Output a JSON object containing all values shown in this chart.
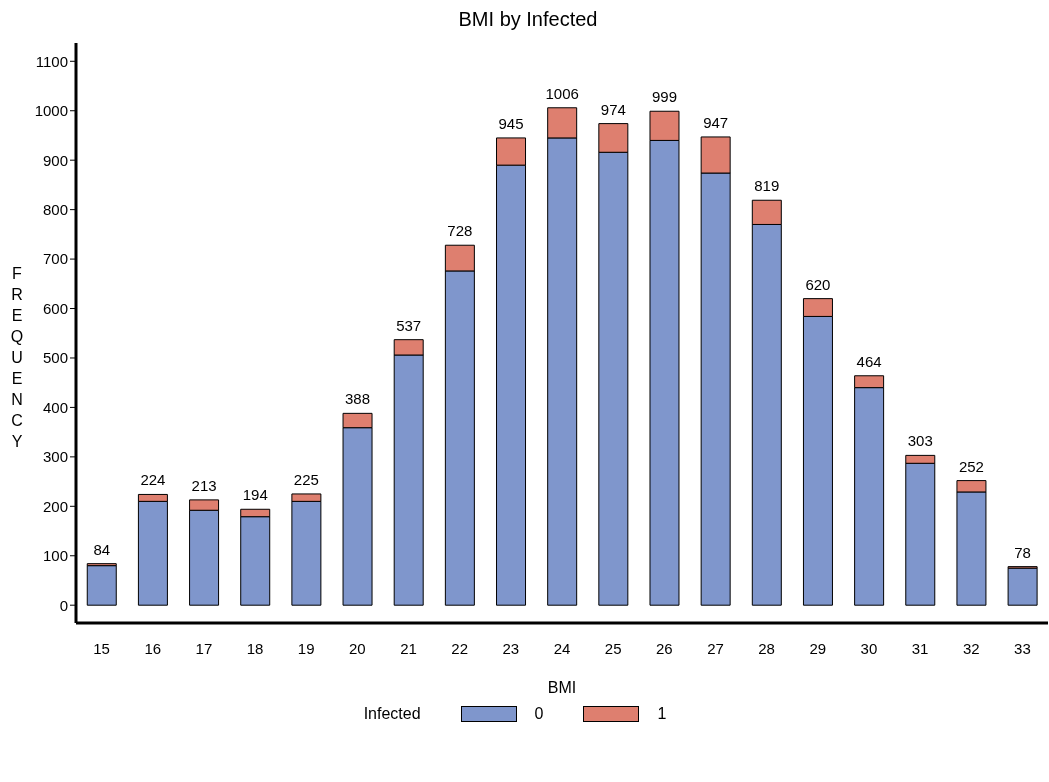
{
  "chart_data": {
    "type": "bar",
    "title": "BMI by Infected",
    "xlabel": "BMI",
    "ylabel": "FREQUENCY",
    "legend_title": "Infected",
    "stacked": true,
    "legend": "bottom",
    "grid": false,
    "categories": [
      "15",
      "16",
      "17",
      "18",
      "19",
      "20",
      "21",
      "22",
      "23",
      "24",
      "25",
      "26",
      "27",
      "28",
      "29",
      "30",
      "31",
      "32",
      "33"
    ],
    "series": [
      {
        "name": "0",
        "color": "#7f96cc",
        "values": [
          80,
          210,
          192,
          179,
          210,
          359,
          506,
          676,
          890,
          945,
          916,
          940,
          874,
          770,
          584,
          440,
          287,
          229,
          75
        ]
      },
      {
        "name": "1",
        "color": "#de7f6f",
        "values": [
          4,
          14,
          21,
          15,
          15,
          29,
          31,
          52,
          55,
          61,
          58,
          59,
          73,
          49,
          36,
          24,
          16,
          23,
          3
        ]
      }
    ],
    "totals": [
      "84",
      "224",
      "213",
      "194",
      "225",
      "388",
      "537",
      "728",
      "945",
      "1006",
      "974",
      "999",
      "947",
      "819",
      "620",
      "464",
      "303",
      "252",
      "78"
    ],
    "ylim": [
      -36,
      1137
    ],
    "yticks": [
      0,
      100,
      200,
      300,
      400,
      500,
      600,
      700,
      800,
      900,
      1000,
      1100
    ]
  }
}
